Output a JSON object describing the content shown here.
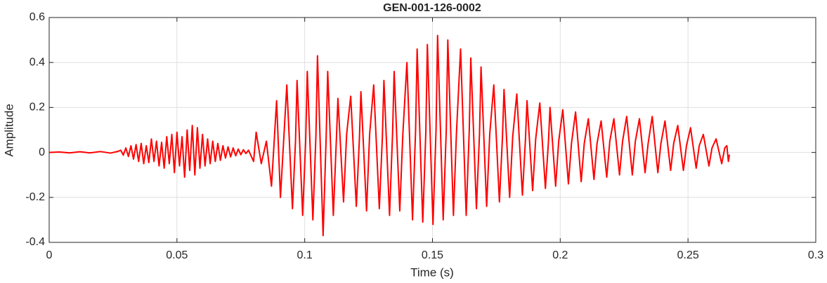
{
  "chart_data": {
    "type": "line",
    "title": "GEN-001-126-0002",
    "xlabel": "Time (s)",
    "ylabel": "Amplitude",
    "color": "#ff0000",
    "grid": true,
    "xlim": [
      0,
      0.3
    ],
    "xticks": [
      0,
      0.05,
      0.1,
      0.15,
      0.2,
      0.25,
      0.3
    ],
    "ylim": [
      -0.4,
      0.6
    ],
    "yticks": [
      -0.4,
      -0.2,
      0,
      0.2,
      0.4,
      0.6
    ],
    "x": [
      0,
      0.004,
      0.008,
      0.012,
      0.016,
      0.02,
      0.024,
      0.027,
      0.028,
      0.029,
      0.03,
      0.031,
      0.032,
      0.033,
      0.034,
      0.035,
      0.036,
      0.037,
      0.038,
      0.039,
      0.04,
      0.041,
      0.042,
      0.043,
      0.044,
      0.045,
      0.046,
      0.047,
      0.048,
      0.049,
      0.05,
      0.051,
      0.052,
      0.053,
      0.054,
      0.055,
      0.056,
      0.057,
      0.058,
      0.059,
      0.06,
      0.061,
      0.062,
      0.063,
      0.064,
      0.065,
      0.066,
      0.067,
      0.068,
      0.069,
      0.07,
      0.071,
      0.072,
      0.073,
      0.074,
      0.075,
      0.076,
      0.077,
      0.078,
      0.08,
      0.081,
      0.083,
      0.085,
      0.087,
      0.089,
      0.0905,
      0.092,
      0.093,
      0.0952,
      0.0964,
      0.097,
      0.0992,
      0.1004,
      0.101,
      0.1032,
      0.1044,
      0.105,
      0.1072,
      0.1084,
      0.109,
      0.1112,
      0.1124,
      0.113,
      0.1152,
      0.1164,
      0.118,
      0.1202,
      0.1214,
      0.122,
      0.1242,
      0.1254,
      0.127,
      0.1292,
      0.1304,
      0.131,
      0.1332,
      0.1344,
      0.135,
      0.1372,
      0.1384,
      0.14,
      0.1422,
      0.1434,
      0.144,
      0.1462,
      0.1474,
      0.148,
      0.1502,
      0.1514,
      0.152,
      0.1542,
      0.1554,
      0.156,
      0.1582,
      0.1594,
      0.161,
      0.1632,
      0.1644,
      0.165,
      0.1672,
      0.1684,
      0.169,
      0.1712,
      0.1724,
      0.174,
      0.1762,
      0.1774,
      0.178,
      0.1802,
      0.1814,
      0.183,
      0.1852,
      0.1864,
      0.187,
      0.1892,
      0.1904,
      0.192,
      0.1942,
      0.1954,
      0.196,
      0.1982,
      0.1994,
      0.201,
      0.2032,
      0.2044,
      0.206,
      0.2082,
      0.2094,
      0.211,
      0.2132,
      0.2144,
      0.216,
      0.2182,
      0.2194,
      0.221,
      0.2232,
      0.2244,
      0.226,
      0.2282,
      0.2294,
      0.231,
      0.2332,
      0.2344,
      0.236,
      0.2382,
      0.2394,
      0.241,
      0.2432,
      0.2444,
      0.246,
      0.2482,
      0.2494,
      0.251,
      0.2532,
      0.2544,
      0.256,
      0.2582,
      0.2594,
      0.261,
      0.2632,
      0.2644,
      0.2652,
      0.2658,
      0.2662
    ],
    "values": [
      0,
      0.002,
      -0.002,
      0.003,
      -0.002,
      0.004,
      -0.003,
      0.005,
      0.01,
      -0.012,
      0.02,
      -0.018,
      0.03,
      -0.03,
      0.035,
      -0.04,
      0.04,
      -0.05,
      0.03,
      -0.045,
      0.06,
      -0.04,
      0.05,
      -0.06,
      0.045,
      -0.07,
      0.07,
      -0.05,
      0.08,
      -0.09,
      0.09,
      -0.06,
      0.07,
      -0.11,
      0.1,
      -0.08,
      0.12,
      -0.1,
      0.11,
      -0.07,
      0.08,
      -0.06,
      0.06,
      -0.05,
      0.05,
      -0.04,
      0.04,
      -0.035,
      0.03,
      -0.025,
      0.025,
      -0.02,
      0.02,
      -0.015,
      0.015,
      -0.01,
      0.012,
      -0.005,
      0.01,
      -0.04,
      0.09,
      -0.05,
      0.05,
      -0.15,
      0.23,
      -0.2,
      0.1,
      0.3,
      -0.25,
      0.05,
      0.32,
      -0.28,
      0.06,
      0.36,
      -0.3,
      0.08,
      0.43,
      -0.37,
      0.07,
      0.36,
      -0.28,
      0.06,
      0.24,
      -0.22,
      0.08,
      0.25,
      -0.24,
      0.06,
      0.27,
      -0.26,
      0.08,
      0.3,
      -0.25,
      0.07,
      0.32,
      -0.28,
      0.09,
      0.36,
      -0.26,
      0.08,
      0.4,
      -0.3,
      0.1,
      0.46,
      -0.31,
      0.09,
      0.48,
      -0.32,
      0.1,
      0.52,
      -0.3,
      0.1,
      0.5,
      -0.28,
      0.09,
      0.46,
      -0.28,
      0.1,
      0.42,
      -0.25,
      0.08,
      0.38,
      -0.24,
      0.08,
      0.3,
      -0.22,
      0.07,
      0.28,
      -0.2,
      0.07,
      0.26,
      -0.19,
      0.06,
      0.23,
      -0.17,
      0.06,
      0.22,
      -0.16,
      0.05,
      0.2,
      -0.15,
      0.05,
      0.19,
      -0.14,
      0.04,
      0.18,
      -0.13,
      0.04,
      0.15,
      -0.12,
      0.04,
      0.14,
      -0.11,
      0.05,
      0.15,
      -0.1,
      0.05,
      0.16,
      -0.1,
      0.05,
      0.15,
      -0.09,
      0.04,
      0.16,
      -0.09,
      0.04,
      0.14,
      -0.08,
      0.04,
      0.12,
      -0.08,
      0.03,
      0.11,
      -0.07,
      0.03,
      0.08,
      -0.06,
      0.02,
      0.06,
      -0.05,
      0.02,
      0.03,
      -0.04,
      -0.01
    ]
  }
}
